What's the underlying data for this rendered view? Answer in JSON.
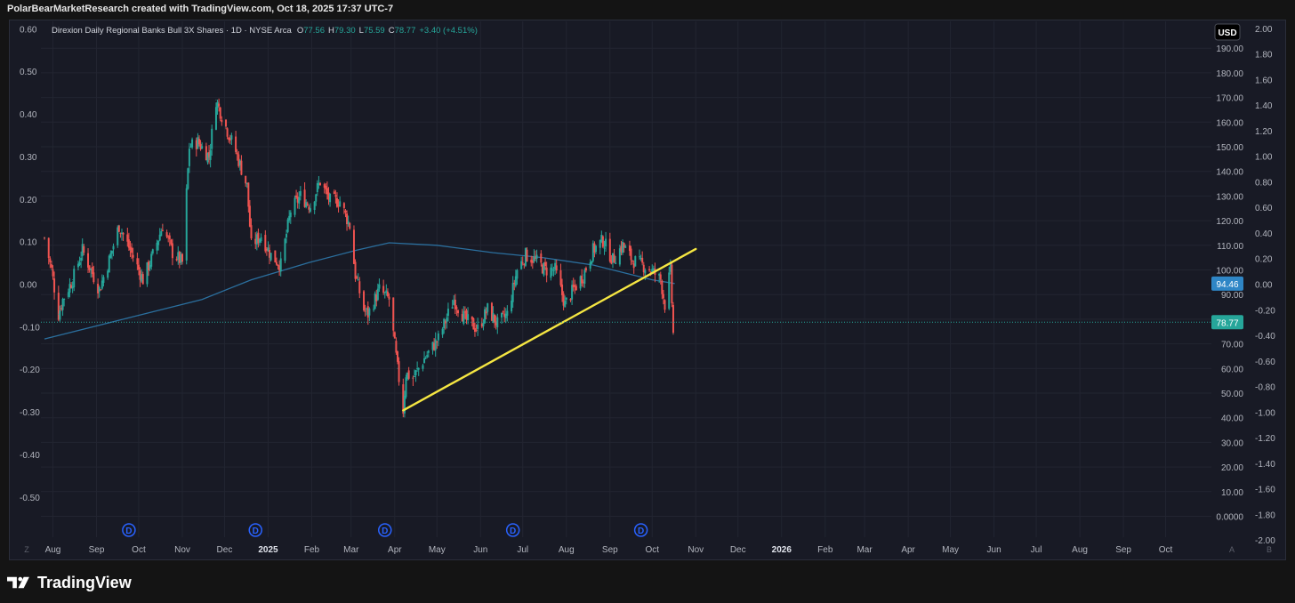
{
  "header": {
    "caption": "PolarBearMarketResearch created with TradingView.com, Oct 18, 2025 17:37 UTC-7"
  },
  "legend": {
    "symbol": "Direxion Daily Regional Banks Bull 3X Shares · 1D · NYSE Arca",
    "o_label": "O",
    "o_value": "77.56",
    "h_label": "H",
    "h_value": "79.30",
    "l_label": "L",
    "l_value": "75.59",
    "c_label": "C",
    "c_value": "78.77",
    "change": "+3.40 (+4.51%)"
  },
  "currency_badge": "USD",
  "colors": {
    "up": "#26a69a",
    "down": "#ef5350",
    "ma": "#2b6f9e",
    "trendline": "#f5e642",
    "price_line": "#26a69a",
    "ma_badge": "#2f86c6",
    "grid": "#222531",
    "text": "#d1d4dc",
    "axis_text": "#b2b5be"
  },
  "footer": {
    "brand": "TradingView",
    "logo_icon": "tradingview-logo-icon"
  },
  "axis_buttons": {
    "left": "Z",
    "right_a": "A",
    "right_b": "B"
  },
  "chart_data": {
    "type": "candlestick",
    "title": "Direxion Daily Regional Banks Bull 3X Shares",
    "interval": "1D",
    "exchange": "NYSE Arca",
    "currency": "USD",
    "x_ticks": [
      "Aug",
      "Sep",
      "Oct",
      "Nov",
      "Dec",
      "2025",
      "Feb",
      "Mar",
      "Apr",
      "May",
      "Jun",
      "Jul",
      "Aug",
      "Sep",
      "Oct",
      "Nov",
      "Dec",
      "2026",
      "Feb",
      "Mar",
      "Apr",
      "May",
      "Jun",
      "Jul",
      "Aug",
      "Sep",
      "Oct"
    ],
    "x_range": [
      "2024-07-26",
      "2026-10-31"
    ],
    "price_ticks": [
      "190.00",
      "180.00",
      "170.00",
      "160.00",
      "150.00",
      "140.00",
      "130.00",
      "120.00",
      "110.00",
      "100.00",
      "90.00",
      "80.00",
      "70.00",
      "60.00",
      "50.00",
      "40.00",
      "30.00",
      "20.00",
      "10.00",
      "0.0000"
    ],
    "price_range": [
      0,
      200
    ],
    "left_ticks": [
      "0.60",
      "0.50",
      "0.40",
      "0.30",
      "0.20",
      "0.10",
      "0.00",
      "-0.10",
      "-0.20",
      "-0.30",
      "-0.40",
      "-0.50"
    ],
    "left_range": [
      -0.5,
      0.6
    ],
    "right_ticks": [
      "2.00",
      "1.80",
      "1.60",
      "1.40",
      "1.20",
      "1.00",
      "0.80",
      "0.60",
      "0.40",
      "0.20",
      "0.00",
      "-0.20",
      "-0.40",
      "-0.60",
      "-0.80",
      "-1.00",
      "-1.20",
      "-1.40",
      "-1.60",
      "-1.80",
      "-2.00"
    ],
    "right_range": [
      -2,
      2
    ],
    "last_price": "78.77",
    "ma_value": "94.46",
    "dividend_marker": "D",
    "dividend_dates": [
      "2024-09-24",
      "2024-12-23",
      "2025-03-25",
      "2025-06-24",
      "2025-09-23"
    ],
    "price_path": [
      [
        "2024-07-26",
        113
      ],
      [
        "2024-07-31",
        100
      ],
      [
        "2024-08-05",
        82
      ],
      [
        "2024-08-08",
        88
      ],
      [
        "2024-08-15",
        96
      ],
      [
        "2024-08-22",
        108
      ],
      [
        "2024-09-03",
        92
      ],
      [
        "2024-09-10",
        104
      ],
      [
        "2024-09-17",
        118
      ],
      [
        "2024-09-25",
        108
      ],
      [
        "2024-10-04",
        96
      ],
      [
        "2024-10-11",
        106
      ],
      [
        "2024-10-18",
        118
      ],
      [
        "2024-10-25",
        107
      ],
      [
        "2024-11-01",
        103
      ],
      [
        "2024-11-06",
        150
      ],
      [
        "2024-11-12",
        152
      ],
      [
        "2024-11-20",
        146
      ],
      [
        "2024-11-25",
        169
      ],
      [
        "2024-12-02",
        158
      ],
      [
        "2024-12-09",
        148
      ],
      [
        "2024-12-17",
        134
      ],
      [
        "2024-12-20",
        110
      ],
      [
        "2024-12-27",
        114
      ],
      [
        "2025-01-03",
        106
      ],
      [
        "2025-01-10",
        102
      ],
      [
        "2025-01-17",
        124
      ],
      [
        "2025-01-24",
        130
      ],
      [
        "2025-01-31",
        126
      ],
      [
        "2025-02-07",
        136
      ],
      [
        "2025-02-14",
        128
      ],
      [
        "2025-02-21",
        128
      ],
      [
        "2025-02-28",
        118
      ],
      [
        "2025-03-04",
        98
      ],
      [
        "2025-03-10",
        84
      ],
      [
        "2025-03-13",
        82
      ],
      [
        "2025-03-21",
        92
      ],
      [
        "2025-03-28",
        88
      ],
      [
        "2025-04-03",
        60
      ],
      [
        "2025-04-07",
        43
      ],
      [
        "2025-04-09",
        58
      ],
      [
        "2025-04-14",
        56
      ],
      [
        "2025-04-22",
        64
      ],
      [
        "2025-05-02",
        72
      ],
      [
        "2025-05-13",
        88
      ],
      [
        "2025-05-21",
        80
      ],
      [
        "2025-05-30",
        76
      ],
      [
        "2025-06-06",
        84
      ],
      [
        "2025-06-13",
        78
      ],
      [
        "2025-06-20",
        82
      ],
      [
        "2025-06-27",
        100
      ],
      [
        "2025-07-03",
        106
      ],
      [
        "2025-07-10",
        104
      ],
      [
        "2025-07-17",
        100
      ],
      [
        "2025-07-24",
        100
      ],
      [
        "2025-07-31",
        86
      ],
      [
        "2025-08-06",
        92
      ],
      [
        "2025-08-13",
        98
      ],
      [
        "2025-08-20",
        108
      ],
      [
        "2025-08-27",
        112
      ],
      [
        "2025-09-03",
        104
      ],
      [
        "2025-09-10",
        110
      ],
      [
        "2025-09-17",
        104
      ],
      [
        "2025-09-24",
        102
      ],
      [
        "2025-09-30",
        100
      ],
      [
        "2025-10-07",
        96
      ],
      [
        "2025-10-10",
        86
      ],
      [
        "2025-10-14",
        100
      ],
      [
        "2025-10-16",
        74
      ],
      [
        "2025-10-17",
        78.77
      ]
    ],
    "moving_average": [
      [
        "2024-07-26",
        72
      ],
      [
        "2024-09-20",
        80
      ],
      [
        "2024-11-15",
        88
      ],
      [
        "2024-12-20",
        96
      ],
      [
        "2025-01-30",
        103
      ],
      [
        "2025-03-05",
        108
      ],
      [
        "2025-03-28",
        111
      ],
      [
        "2025-05-01",
        110
      ],
      [
        "2025-06-10",
        107
      ],
      [
        "2025-07-15",
        105
      ],
      [
        "2025-08-20",
        102
      ],
      [
        "2025-10-01",
        96
      ],
      [
        "2025-10-17",
        94.46
      ]
    ],
    "trendline": [
      [
        "2025-04-07",
        43
      ],
      [
        "2025-11-01",
        108.5
      ]
    ],
    "grid": true
  }
}
